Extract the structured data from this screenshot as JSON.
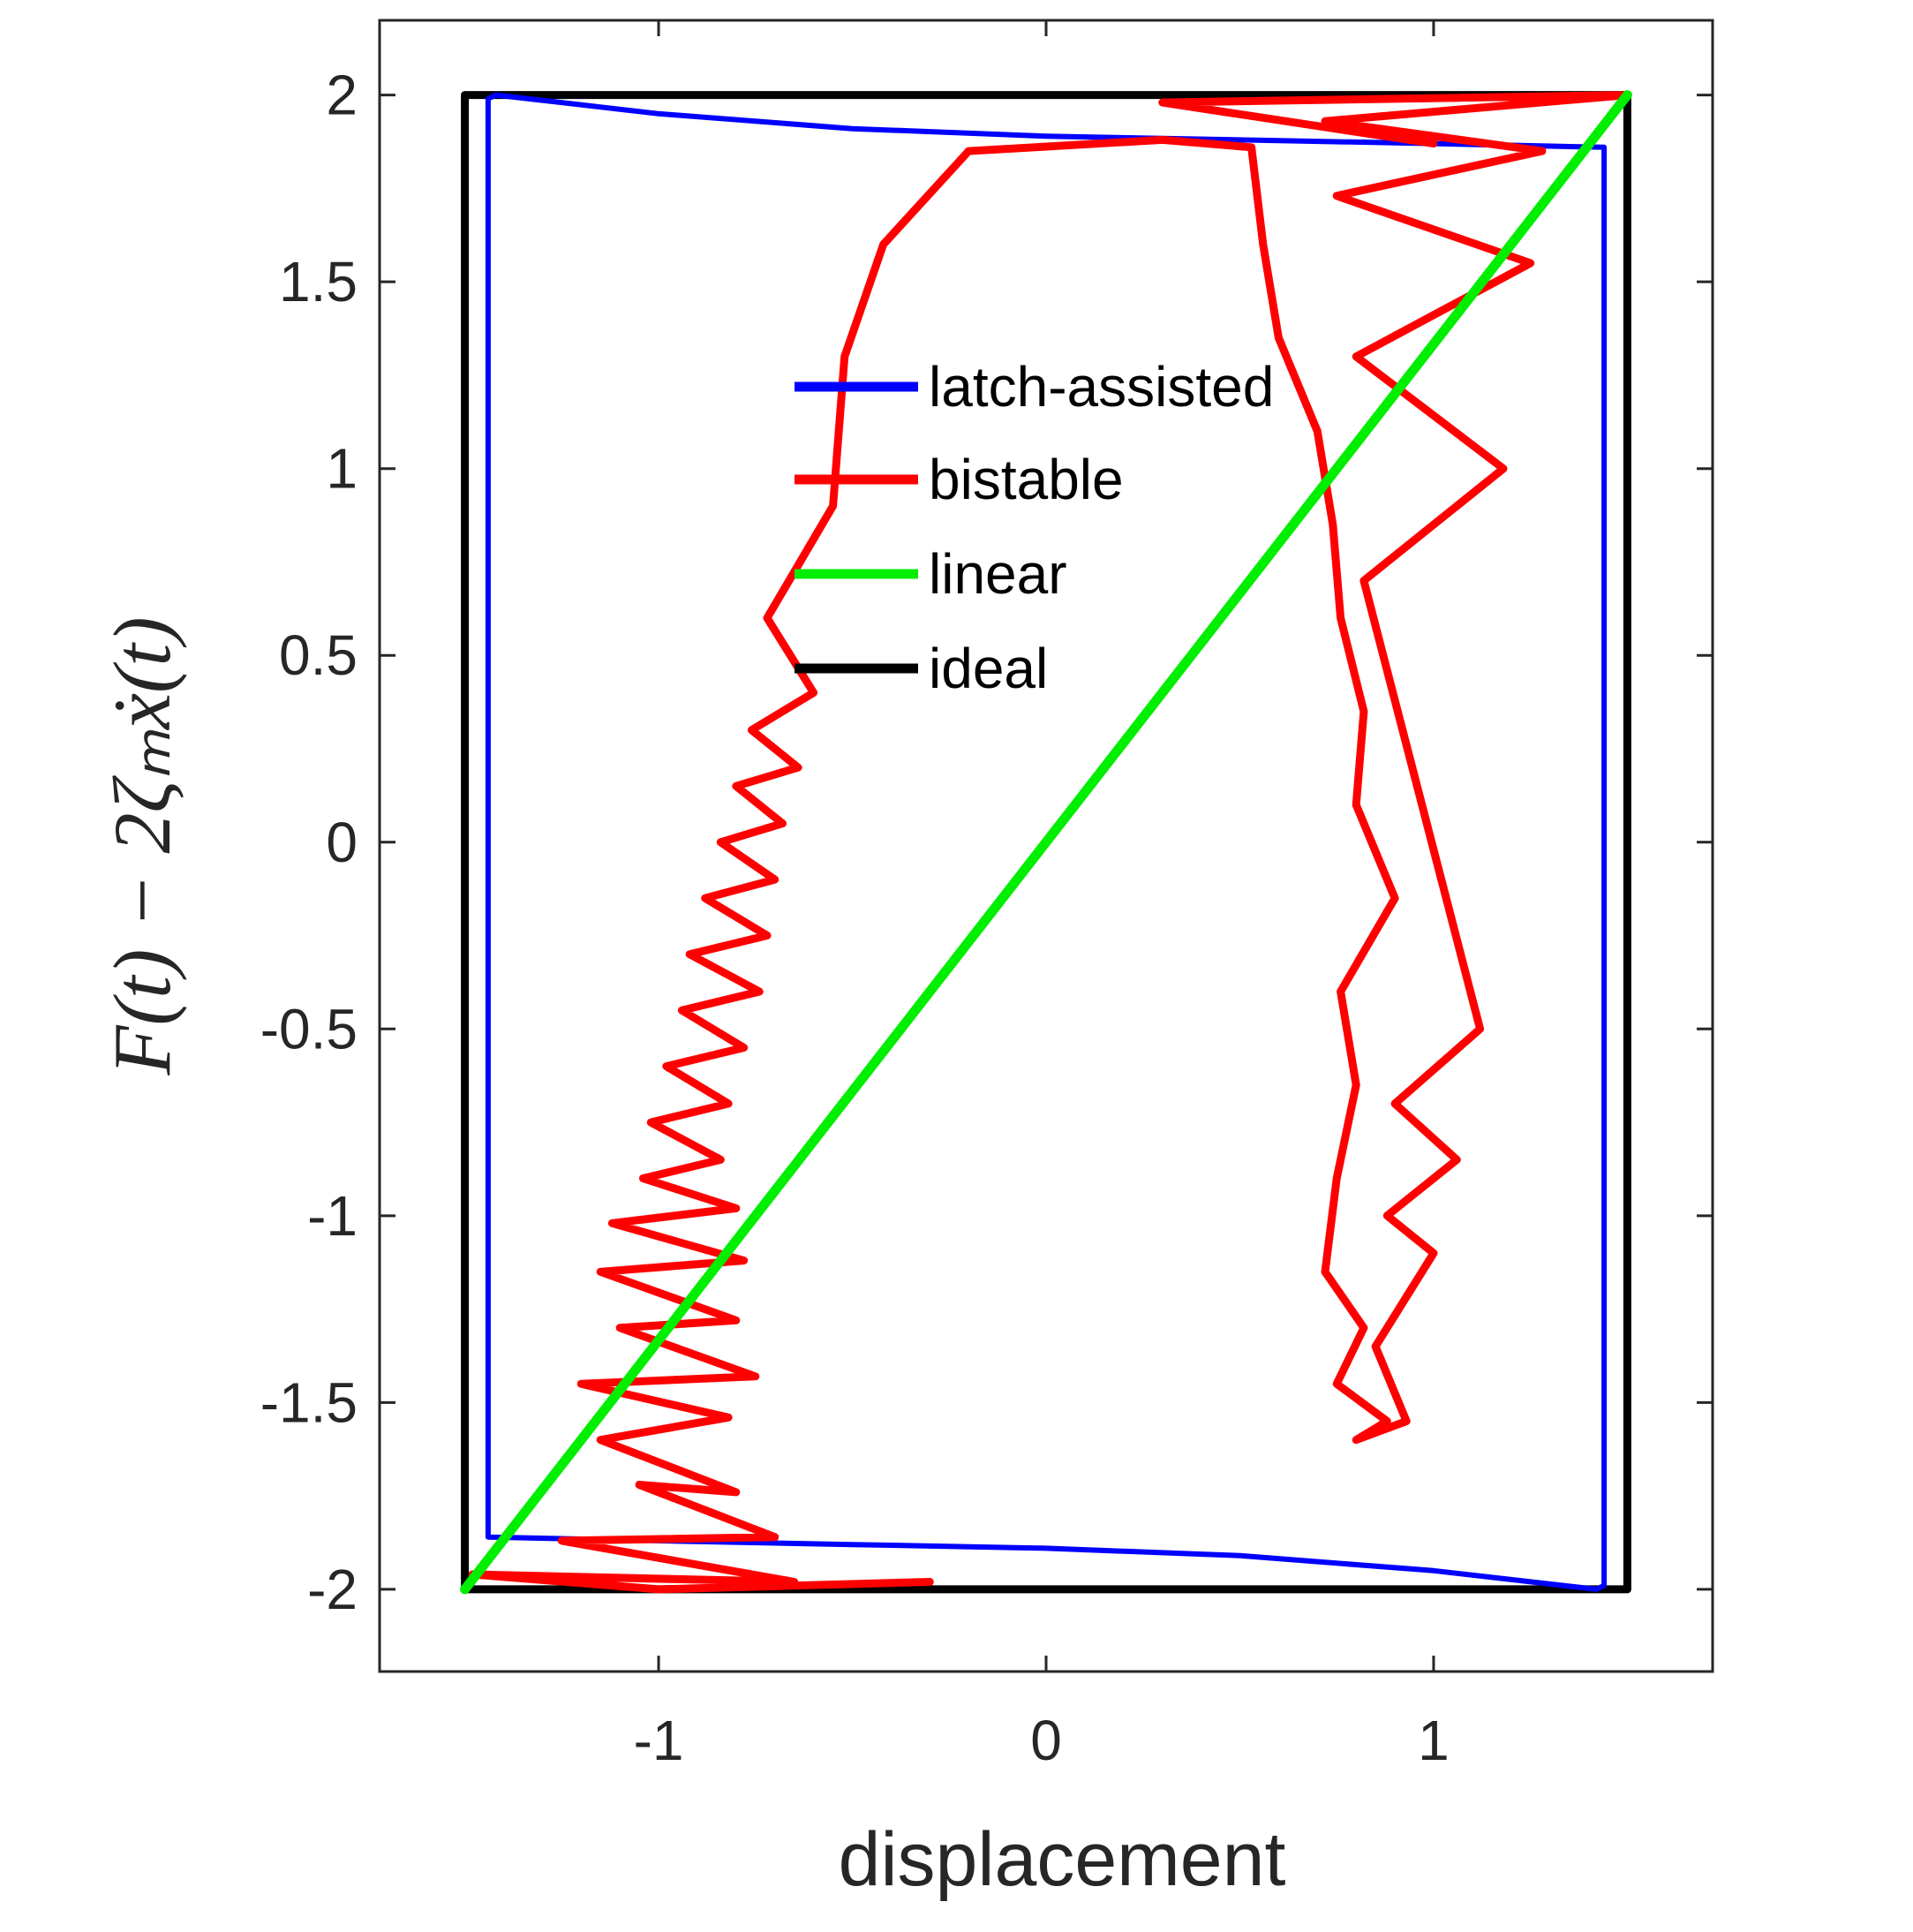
{
  "chart_data": {
    "type": "line",
    "xlabel": "displacement",
    "ylabel": "F(t) − 2ζₘẋ(t)",
    "xlim": [
      -1.72,
      1.72
    ],
    "ylim": [
      -2.22,
      2.2
    ],
    "xticks": [
      -1,
      0,
      1
    ],
    "xtick_labels": [
      "-1",
      "0",
      "1"
    ],
    "yticks": [
      -2,
      -1.5,
      -1,
      -0.5,
      0,
      0.5,
      1,
      1.5,
      2
    ],
    "ytick_labels": [
      "-2",
      "-1.5",
      "-1",
      "-0.5",
      "0",
      "0.5",
      "1",
      "1.5",
      "2"
    ],
    "grid": false,
    "legend_position": "upper-center",
    "series": [
      {
        "name": "latch-assisted",
        "color": "#0000ff",
        "x": [
          -1.42,
          -1.0,
          -0.5,
          0.0,
          0.5,
          1.0,
          1.44,
          1.44,
          1.44,
          1.42,
          1.0,
          0.5,
          0.0,
          -0.5,
          -1.0,
          -1.44,
          -1.44,
          -1.44
        ],
        "y": [
          2.0,
          1.95,
          1.91,
          1.89,
          1.88,
          1.87,
          1.86,
          0.0,
          -1.99,
          -2.0,
          -1.95,
          -1.91,
          -1.89,
          -1.88,
          -1.87,
          -1.86,
          0.0,
          1.99
        ]
      },
      {
        "name": "bistable",
        "color": "#ff0000",
        "x": [
          -0.3,
          -1.0,
          -1.48,
          -0.65,
          -1.25,
          -0.7,
          -1.05,
          -0.8,
          -1.15,
          -0.82,
          -1.2,
          -0.75,
          -1.1,
          -0.8,
          -1.15,
          -0.78,
          -1.12,
          -0.8,
          -1.04,
          -0.84,
          -1.02,
          -0.82,
          -0.98,
          -0.78,
          -0.94,
          -0.74,
          -0.92,
          -0.72,
          -0.88,
          -0.7,
          -0.84,
          -0.68,
          -0.8,
          -0.64,
          -0.76,
          -0.6,
          -0.72,
          -0.55,
          -0.52,
          -0.42,
          -0.2,
          0.3,
          0.53,
          0.56,
          0.6,
          0.7,
          0.74,
          0.76,
          0.82,
          0.8,
          0.9,
          0.76,
          0.8,
          0.75,
          0.72,
          0.82,
          0.75,
          0.88,
          0.8,
          0.93,
          0.85,
          1.0,
          0.88,
          1.06,
          0.9,
          1.12,
          0.82,
          1.18,
          0.8,
          1.25,
          0.75,
          1.28,
          0.72,
          1.5,
          0.3,
          1.0
        ],
        "y": [
          -1.98,
          -2.0,
          -1.96,
          -1.98,
          -1.87,
          -1.86,
          -1.72,
          -1.74,
          -1.6,
          -1.54,
          -1.45,
          -1.43,
          -1.3,
          -1.28,
          -1.15,
          -1.12,
          -1.02,
          -0.98,
          -0.9,
          -0.85,
          -0.75,
          -0.7,
          -0.6,
          -0.55,
          -0.45,
          -0.4,
          -0.3,
          -0.25,
          -0.15,
          -0.1,
          0.0,
          0.05,
          0.15,
          0.2,
          0.3,
          0.4,
          0.6,
          0.9,
          1.3,
          1.6,
          1.85,
          1.88,
          1.86,
          1.6,
          1.35,
          1.1,
          0.85,
          0.6,
          0.35,
          0.1,
          -0.15,
          -0.4,
          -0.65,
          -0.9,
          -1.15,
          -1.3,
          -1.45,
          -1.55,
          -1.6,
          -1.55,
          -1.35,
          -1.1,
          -1.0,
          -0.85,
          -0.7,
          -0.5,
          0.7,
          1.0,
          1.3,
          1.55,
          1.73,
          1.85,
          1.93,
          2.0,
          1.98,
          1.87
        ]
      },
      {
        "name": "linear",
        "color": "#00ee00",
        "x": [
          -1.5,
          1.5
        ],
        "y": [
          -2.0,
          2.0
        ]
      },
      {
        "name": "ideal",
        "color": "#000000",
        "x": [
          -1.5,
          1.5,
          1.5,
          -1.5,
          -1.5
        ],
        "y": [
          2.0,
          2.0,
          -2.0,
          -2.0,
          2.0
        ]
      }
    ]
  }
}
